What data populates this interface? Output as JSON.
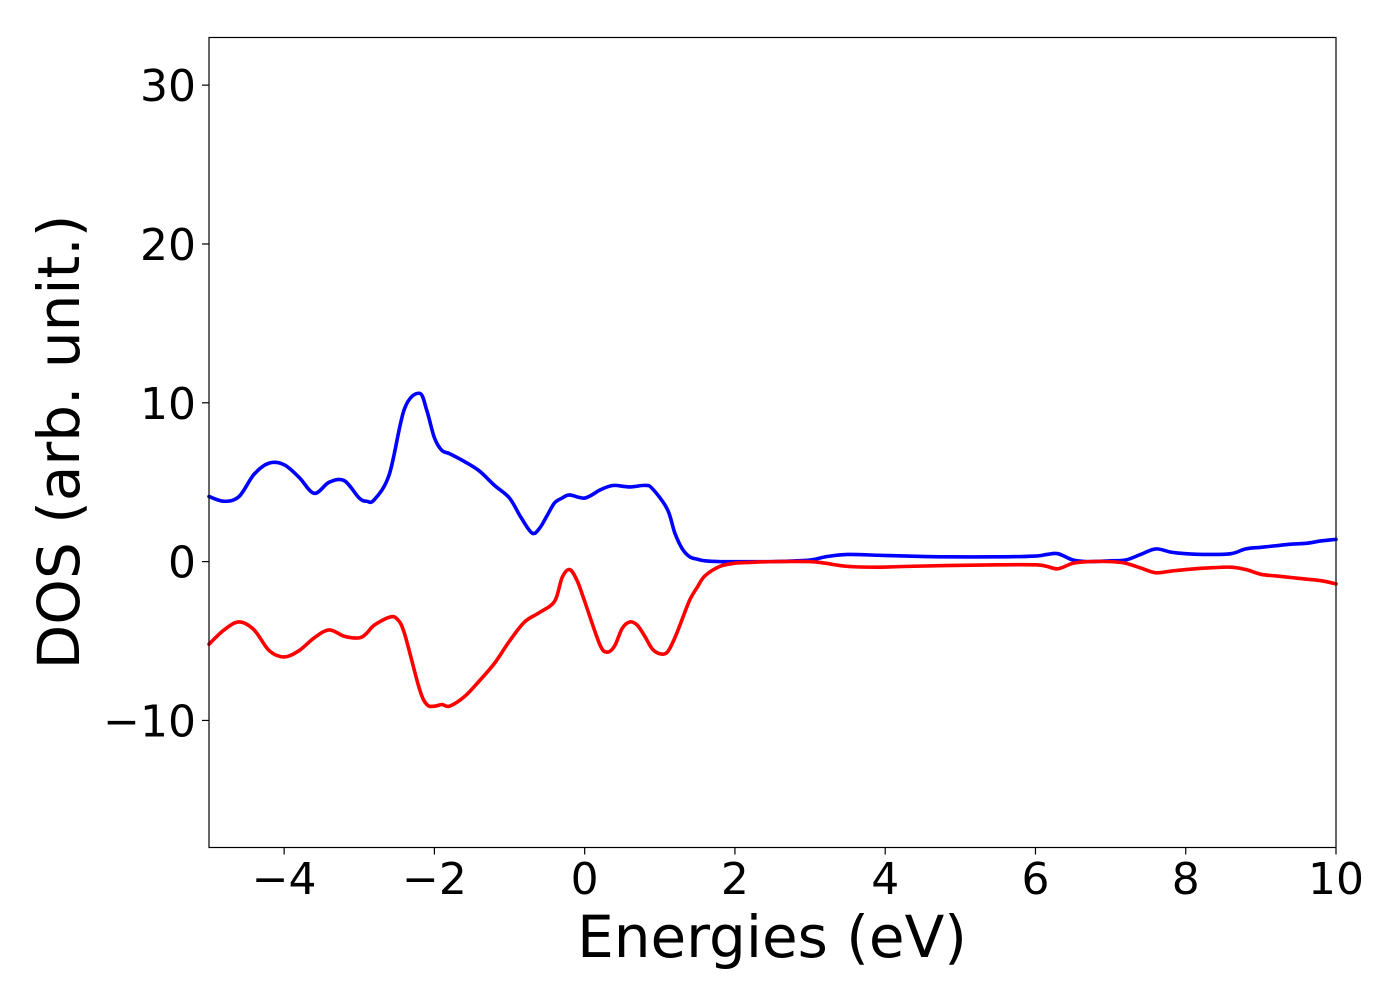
{
  "chart_data": {
    "type": "line",
    "title": "",
    "xlabel": "Energies (eV)",
    "ylabel": "DOS (arb. unit.)",
    "xlim": [
      -5,
      10
    ],
    "ylim": [
      -18,
      33
    ],
    "xticks": [
      -4,
      -2,
      0,
      2,
      4,
      6,
      8,
      10
    ],
    "xtick_labels": [
      "−4",
      "−2",
      "0",
      "2",
      "4",
      "6",
      "8",
      "10"
    ],
    "yticks": [
      -10,
      0,
      10,
      20,
      30
    ],
    "ytick_labels": [
      "−10",
      "0",
      "10",
      "20",
      "30"
    ],
    "grid": false,
    "legend": "none",
    "series": [
      {
        "color": "#0000ff",
        "x": [
          -5,
          -4.8,
          -4.6,
          -4.4,
          -4.2,
          -4.0,
          -3.8,
          -3.6,
          -3.4,
          -3.2,
          -3.0,
          -2.9,
          -2.8,
          -2.6,
          -2.4,
          -2.2,
          -2.1,
          -2.0,
          -1.9,
          -1.8,
          -1.6,
          -1.4,
          -1.2,
          -1.0,
          -0.85,
          -0.7,
          -0.6,
          -0.5,
          -0.4,
          -0.3,
          -0.2,
          0.0,
          0.2,
          0.3,
          0.4,
          0.6,
          0.8,
          0.9,
          1.1,
          1.2,
          1.3,
          1.4,
          1.5,
          1.6,
          1.8,
          2.0,
          2.2,
          2.5,
          3.0,
          3.2,
          3.5,
          3.9,
          4.3,
          4.8,
          5.5,
          6.0,
          6.15,
          6.3,
          6.5,
          6.7,
          7.0,
          7.2,
          7.4,
          7.6,
          7.8,
          8.0,
          8.3,
          8.6,
          8.8,
          9.0,
          9.2,
          9.4,
          9.6,
          9.8,
          10.0
        ],
        "y": [
          4.1,
          3.8,
          4.1,
          5.5,
          6.2,
          6.1,
          5.3,
          4.3,
          5.0,
          5.1,
          4.0,
          3.8,
          3.9,
          5.5,
          9.6,
          10.6,
          9.5,
          7.8,
          7.0,
          6.8,
          6.3,
          5.7,
          4.8,
          4.0,
          2.8,
          1.8,
          2.1,
          2.9,
          3.7,
          4.0,
          4.2,
          4.0,
          4.5,
          4.7,
          4.8,
          4.7,
          4.8,
          4.6,
          3.3,
          1.8,
          0.8,
          0.3,
          0.15,
          0.05,
          0.0,
          0.0,
          0.0,
          0.0,
          0.1,
          0.3,
          0.45,
          0.4,
          0.35,
          0.3,
          0.3,
          0.35,
          0.45,
          0.5,
          0.1,
          0.0,
          0.05,
          0.1,
          0.45,
          0.8,
          0.6,
          0.5,
          0.45,
          0.5,
          0.8,
          0.9,
          1.0,
          1.1,
          1.15,
          1.3,
          1.4
        ]
      },
      {
        "color": "#ff0000",
        "x": [
          -5,
          -4.8,
          -4.6,
          -4.4,
          -4.2,
          -4.0,
          -3.8,
          -3.6,
          -3.4,
          -3.2,
          -3.0,
          -2.9,
          -2.8,
          -2.6,
          -2.5,
          -2.4,
          -2.2,
          -2.1,
          -2.0,
          -1.9,
          -1.8,
          -1.6,
          -1.4,
          -1.2,
          -1.0,
          -0.8,
          -0.6,
          -0.4,
          -0.3,
          -0.2,
          -0.1,
          0.0,
          0.2,
          0.3,
          0.4,
          0.5,
          0.6,
          0.7,
          0.8,
          0.9,
          1.0,
          1.1,
          1.2,
          1.3,
          1.4,
          1.5,
          1.6,
          1.8,
          2.0,
          2.2,
          2.5,
          3.0,
          3.2,
          3.5,
          3.9,
          4.3,
          4.8,
          5.5,
          6.0,
          6.15,
          6.3,
          6.5,
          6.7,
          7.0,
          7.2,
          7.4,
          7.6,
          7.8,
          8.0,
          8.3,
          8.6,
          8.8,
          9.0,
          9.2,
          9.4,
          9.6,
          9.8,
          10.0
        ],
        "y": [
          -5.2,
          -4.3,
          -3.8,
          -4.3,
          -5.6,
          -6.0,
          -5.6,
          -4.8,
          -4.3,
          -4.7,
          -4.8,
          -4.5,
          -4.0,
          -3.5,
          -3.6,
          -4.5,
          -8.0,
          -9.0,
          -9.1,
          -9.0,
          -9.1,
          -8.5,
          -7.5,
          -6.4,
          -5.0,
          -3.8,
          -3.2,
          -2.5,
          -1.0,
          -0.5,
          -1.2,
          -2.5,
          -5.2,
          -5.7,
          -5.3,
          -4.2,
          -3.8,
          -4.0,
          -4.7,
          -5.5,
          -5.8,
          -5.7,
          -4.8,
          -3.6,
          -2.4,
          -1.6,
          -0.9,
          -0.3,
          -0.1,
          -0.05,
          0.0,
          0.0,
          -0.1,
          -0.3,
          -0.35,
          -0.3,
          -0.25,
          -0.2,
          -0.2,
          -0.3,
          -0.45,
          -0.1,
          0.0,
          0.0,
          -0.1,
          -0.4,
          -0.7,
          -0.6,
          -0.5,
          -0.4,
          -0.35,
          -0.5,
          -0.8,
          -0.9,
          -1.0,
          -1.1,
          -1.2,
          -1.4
        ]
      }
    ]
  }
}
